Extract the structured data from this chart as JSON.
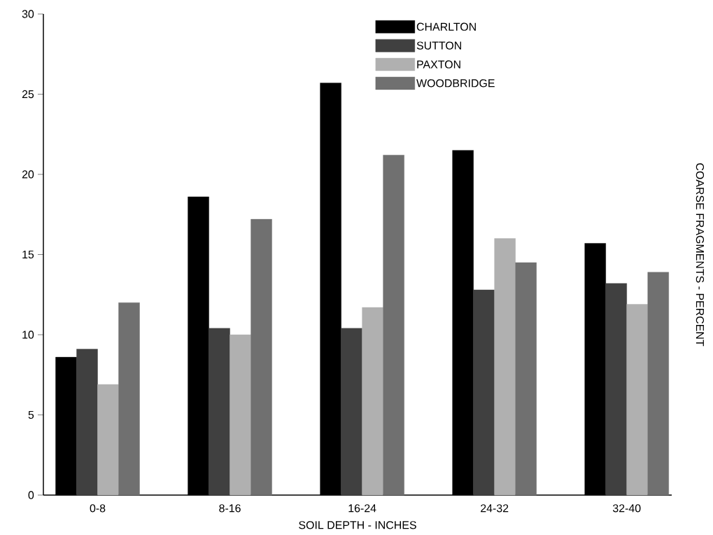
{
  "chart_data": {
    "type": "bar",
    "xlabel": "SOIL DEPTH - INCHES",
    "ylabel": "COARSE FRAGMENTS - PERCENT",
    "categories": [
      "0-8",
      "8-16",
      "16-24",
      "24-32",
      "32-40"
    ],
    "series": [
      {
        "name": "CHARLTON",
        "color": "#000000",
        "values": [
          8.6,
          18.6,
          25.7,
          21.5,
          15.7
        ]
      },
      {
        "name": "SUTTON",
        "color": "#404040",
        "values": [
          9.1,
          10.4,
          10.4,
          12.8,
          13.2
        ]
      },
      {
        "name": "PAXTON",
        "color": "#b0b0b0",
        "values": [
          6.9,
          10.0,
          11.7,
          16.0,
          11.9
        ]
      },
      {
        "name": "WOODBRIDGE",
        "color": "#707070",
        "values": [
          12.0,
          17.2,
          21.2,
          14.5,
          13.9
        ]
      }
    ],
    "ylim": [
      0,
      30
    ],
    "yticks": [
      0,
      5,
      10,
      15,
      20,
      25,
      30
    ],
    "legend": "top",
    "grid": false
  }
}
